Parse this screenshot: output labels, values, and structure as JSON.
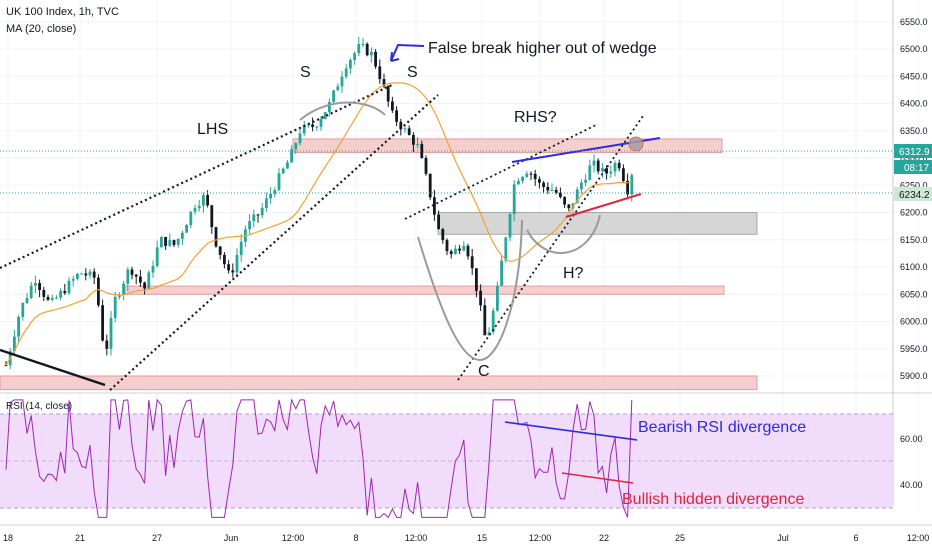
{
  "header": {
    "symbol": "UK 100 Index, 1h, TVC",
    "indicator": "MA (20, close)",
    "rsi_label": "RSI (14, close)"
  },
  "colors": {
    "bull": "#26a69a",
    "bear": "#131722",
    "ma": "#f7a032",
    "zone_red": "#f4c6c6",
    "zone_gray": "#cfcfcf",
    "blue": "#2b2be0",
    "red": "#e0243a",
    "rsi_line": "#9c27b0",
    "rsi_fill": "#f1dcfb",
    "price_tag": "#26a69a",
    "dotted_price": "#26a69a"
  },
  "chart_data": {
    "type": "candlestick",
    "title": "UK 100 Index, 1h, TVC",
    "y_ticks": [
      5900,
      5950,
      6000,
      6050,
      6100,
      6150,
      6200,
      6250,
      6300,
      6350,
      6400,
      6450,
      6500,
      6550
    ],
    "ylim": [
      5870,
      6570
    ],
    "x_ticks": [
      "18",
      "21",
      "27",
      "Jun",
      "12:00",
      "8",
      "12:00",
      "15",
      "12:00",
      "22",
      "25",
      "Jul",
      "6",
      "12:00"
    ],
    "last_price": "6312.9",
    "countdown": "08:17",
    "second_price": "6234.2",
    "annotations": {
      "false_break": "False break higher out of wedge",
      "s_left": "S",
      "s_right": "S",
      "lhs": "LHS",
      "rhs": "RHS?",
      "c": "C",
      "h": "H?",
      "bearish_div": "Bearish RSI divergence",
      "bullish_div": "Bullish hidden divergence"
    },
    "rsi": {
      "y_ticks": [
        40,
        60
      ],
      "upper": 70,
      "lower": 30
    },
    "zones": [
      {
        "type": "resistance",
        "from": 6310,
        "to": 6335
      },
      {
        "type": "support",
        "from": 6160,
        "to": 6200
      },
      {
        "type": "support",
        "from": 6050,
        "to": 6065
      },
      {
        "type": "support",
        "from": 5875,
        "to": 5900
      }
    ]
  }
}
